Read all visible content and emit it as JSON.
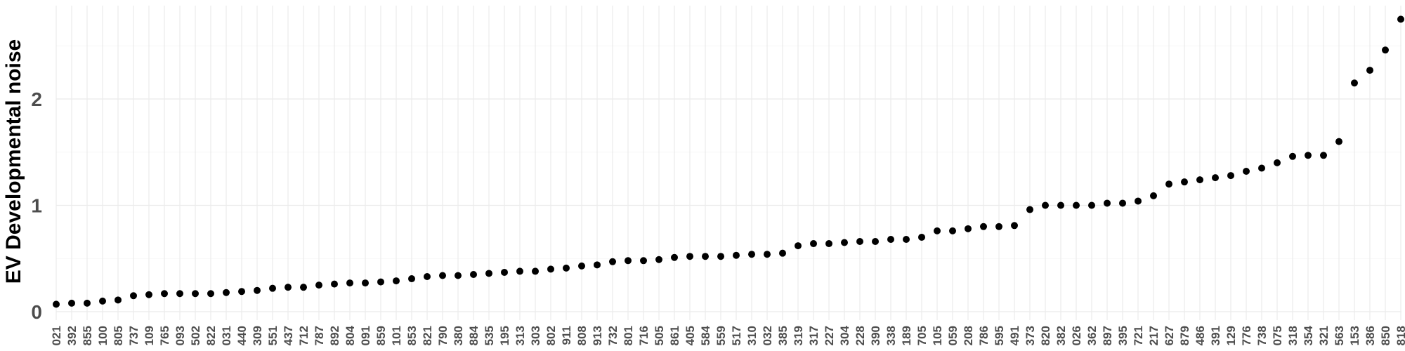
{
  "chart_data": {
    "type": "scatter",
    "title": "",
    "xlabel": "",
    "ylabel": "EV Developmental noise",
    "ylim": [
      -0.03,
      2.93
    ],
    "yticks": [
      0,
      1,
      2
    ],
    "grid": true,
    "legend": "none",
    "point_color": "#000000",
    "categories": [
      "021",
      "392",
      "855",
      "100",
      "805",
      "737",
      "109",
      "765",
      "093",
      "502",
      "822",
      "031",
      "440",
      "309",
      "551",
      "437",
      "712",
      "787",
      "892",
      "804",
      "091",
      "859",
      "101",
      "853",
      "821",
      "790",
      "380",
      "884",
      "535",
      "195",
      "313",
      "303",
      "802",
      "911",
      "808",
      "913",
      "732",
      "801",
      "716",
      "505",
      "861",
      "405",
      "584",
      "559",
      "517",
      "310",
      "032",
      "385",
      "319",
      "317",
      "227",
      "304",
      "228",
      "390",
      "338",
      "189",
      "705",
      "105",
      "059",
      "208",
      "786",
      "595",
      "491",
      "373",
      "820",
      "382",
      "026",
      "362",
      "897",
      "395",
      "721",
      "217",
      "627",
      "879",
      "486",
      "391",
      "129",
      "776",
      "738",
      "075",
      "318",
      "354",
      "321",
      "563",
      "153",
      "386",
      "850",
      "818"
    ],
    "values": [
      0.07,
      0.08,
      0.08,
      0.1,
      0.11,
      0.15,
      0.16,
      0.17,
      0.17,
      0.17,
      0.17,
      0.18,
      0.19,
      0.2,
      0.22,
      0.23,
      0.23,
      0.25,
      0.26,
      0.27,
      0.27,
      0.28,
      0.29,
      0.31,
      0.33,
      0.34,
      0.34,
      0.35,
      0.36,
      0.37,
      0.38,
      0.38,
      0.4,
      0.41,
      0.43,
      0.44,
      0.47,
      0.48,
      0.48,
      0.49,
      0.51,
      0.52,
      0.52,
      0.52,
      0.53,
      0.54,
      0.54,
      0.55,
      0.62,
      0.64,
      0.64,
      0.65,
      0.66,
      0.66,
      0.68,
      0.68,
      0.7,
      0.76,
      0.76,
      0.78,
      0.8,
      0.8,
      0.81,
      0.96,
      1.0,
      1.0,
      1.0,
      1.0,
      1.02,
      1.02,
      1.04,
      1.09,
      1.2,
      1.22,
      1.24,
      1.26,
      1.28,
      1.32,
      1.35,
      1.4,
      1.46,
      1.47,
      1.47,
      1.6,
      2.15,
      2.27,
      2.46,
      2.75
    ]
  }
}
